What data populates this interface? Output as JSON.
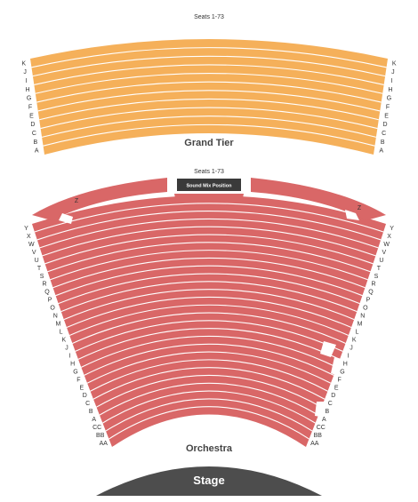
{
  "colors": {
    "grand_tier": "#f5b05a",
    "orchestra": "#d96767",
    "stage": "#4d4d4d",
    "sound_mix": "#3a3a3a",
    "row_divider": "#ffffff"
  },
  "grand_tier": {
    "seats_label": "Seats 1-73",
    "name": "Grand Tier",
    "rows": [
      "A",
      "B",
      "C",
      "D",
      "E",
      "F",
      "G",
      "H",
      "I",
      "J",
      "K"
    ]
  },
  "orchestra": {
    "seats_label": "Seats 1-73",
    "name": "Orchestra",
    "sound_mix": "Sound Mix Position",
    "rows": [
      "AA",
      "BB",
      "CC",
      "A",
      "B",
      "C",
      "D",
      "E",
      "F",
      "G",
      "H",
      "I",
      "J",
      "K",
      "L",
      "M",
      "N",
      "O",
      "P",
      "Q",
      "R",
      "S",
      "T",
      "U",
      "V",
      "W",
      "X",
      "Y",
      "Z"
    ]
  },
  "stage": {
    "name": "Stage"
  }
}
